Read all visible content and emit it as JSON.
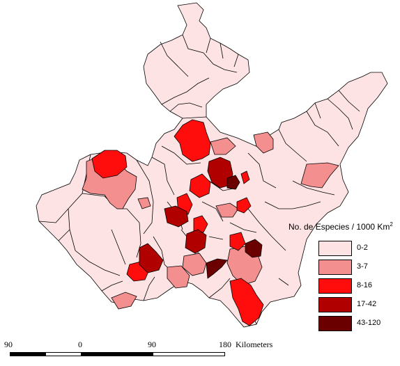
{
  "legend": {
    "title": "No. de Especies / 1000 Km",
    "title_sup": "2",
    "items": [
      {
        "label": "0-2",
        "color": "#fde3e3"
      },
      {
        "label": "3-7",
        "color": "#f48f8f"
      },
      {
        "label": "8-16",
        "color": "#ff0d0d"
      },
      {
        "label": "17-42",
        "color": "#b00000"
      },
      {
        "label": "43-120",
        "color": "#6a0000"
      }
    ]
  },
  "scale": {
    "ticks": [
      "90",
      "0",
      "90",
      "180"
    ],
    "unit": "Kilometers"
  },
  "colors": {
    "outline": "#000000",
    "class_0_2": "#fde3e3",
    "class_3_7": "#f48f8f",
    "class_8_16": "#ff0d0d",
    "class_17_42": "#b00000",
    "class_43_120": "#6a0000"
  }
}
